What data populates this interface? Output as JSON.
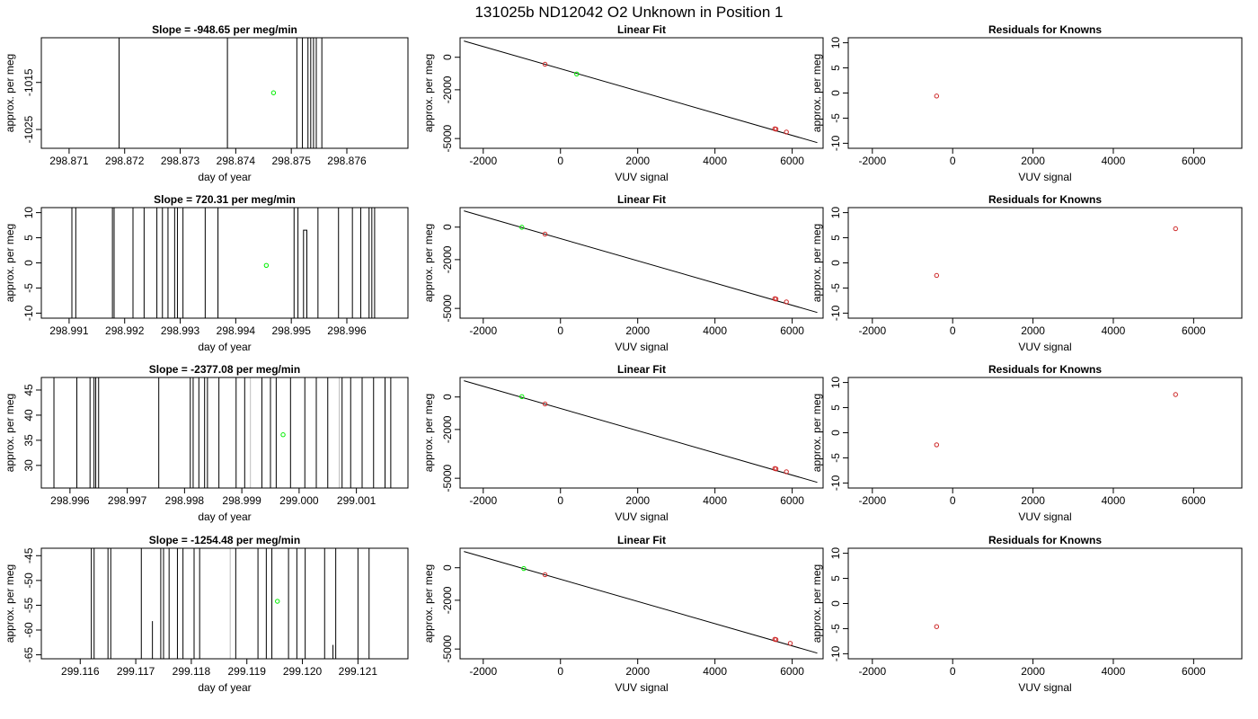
{
  "page": {
    "title": "131025b     ND12042   O2 Unknown in Position  1"
  },
  "chart_data": [
    {
      "type": "line",
      "row": 0,
      "col": 0,
      "title": "Slope =  -948.65  per meg/min",
      "xlabel": "day of year",
      "ylabel": "approx. per meg",
      "xlim": [
        298.8705,
        298.8771
      ],
      "ylim": [
        -1029,
        -1005.5
      ],
      "xticks": [
        298.871,
        298.872,
        298.873,
        298.874,
        298.875,
        298.876
      ],
      "xtick_labels": [
        "298.871",
        "298.872",
        "298.873",
        "298.874",
        "298.875",
        "298.876"
      ],
      "yticks": [
        -1015,
        -1025
      ],
      "ytick_labels": [
        "-1015",
        "-1025"
      ],
      "trace_x": [
        298.8719,
        298.8719,
        298.87385,
        298.87385,
        298.8751,
        298.8751,
        298.8752,
        298.8752,
        298.8753,
        298.8753,
        298.87535,
        298.87535,
        298.8754,
        298.8754,
        298.87545,
        298.87545,
        298.87555,
        298.87555
      ],
      "trace_y": [
        -1035,
        -995,
        -995,
        -1035,
        -1035,
        -995,
        -995,
        -1035,
        -1035,
        -995,
        -995,
        -1035,
        -1035,
        -995,
        -995,
        -1035,
        -1035,
        -995
      ],
      "grey_lines": [
        298.87385
      ],
      "mean_point": [
        298.87468,
        -1017.2
      ]
    },
    {
      "type": "scatter",
      "row": 0,
      "col": 1,
      "title": "Linear Fit",
      "xlabel": "VUV signal",
      "ylabel": "approx. per meg",
      "xlim": [
        -2600,
        6800
      ],
      "ylim": [
        -5600,
        1200
      ],
      "xticks": [
        -2000,
        0,
        2000,
        4000,
        6000
      ],
      "xtick_labels": [
        "-2000",
        "0",
        "2000",
        "4000",
        "6000"
      ],
      "yticks": [
        0,
        -2000,
        -5000
      ],
      "ytick_labels": [
        "0",
        "-2000",
        "-5000"
      ],
      "fit_line": [
        [
          -2500,
          1000
        ],
        [
          6650,
          -5250
        ]
      ],
      "known_points": [
        [
          -400,
          -430
        ],
        [
          5550,
          -4400
        ],
        [
          5580,
          -4420
        ],
        [
          5850,
          -4600
        ]
      ],
      "unknown_points": [
        [
          420,
          -1030
        ]
      ]
    },
    {
      "type": "scatter",
      "row": 0,
      "col": 2,
      "title": "Residuals for Knowns",
      "xlabel": "VUV signal",
      "ylabel": "approx. per meg",
      "xlim": [
        -2600,
        7200
      ],
      "ylim": [
        -11,
        11
      ],
      "xticks": [
        -2000,
        0,
        2000,
        4000,
        6000
      ],
      "xtick_labels": [
        "-2000",
        "0",
        "2000",
        "4000",
        "6000"
      ],
      "yticks": [
        10,
        5,
        0,
        -5,
        -10
      ],
      "ytick_labels": [
        "10",
        "5",
        "0",
        "-5",
        "-10"
      ],
      "points": [
        [
          -400,
          -0.6
        ]
      ]
    },
    {
      "type": "line",
      "row": 1,
      "col": 0,
      "title": "Slope =  720.31  per meg/min",
      "xlabel": "day of year",
      "ylabel": "approx. per meg",
      "xlim": [
        298.9905,
        298.9971
      ],
      "ylim": [
        -11,
        11
      ],
      "xticks": [
        298.991,
        298.992,
        298.993,
        298.994,
        298.995,
        298.996
      ],
      "xtick_labels": [
        "298.991",
        "298.992",
        "298.993",
        "298.994",
        "298.995",
        "298.996"
      ],
      "yticks": [
        10,
        5,
        0,
        -5,
        -10
      ],
      "ytick_labels": [
        "10",
        "5",
        "0",
        "-5",
        "-10"
      ],
      "trace_x": [
        298.99105,
        298.99105,
        298.99112,
        298.99112,
        298.99178,
        298.99178,
        298.99181,
        298.99181,
        298.99215,
        298.99215,
        298.99235,
        298.99235,
        298.99258,
        298.99258,
        298.99268,
        298.99268,
        298.99278,
        298.99278,
        298.9929,
        298.9929,
        298.99295,
        298.99295,
        298.99305,
        298.99305,
        298.99345,
        298.99345,
        298.99368,
        298.99368,
        298.99505,
        298.99505,
        298.99512,
        298.99512,
        298.99522,
        298.99522,
        298.99528,
        298.99528,
        298.99548,
        298.99548,
        298.99585,
        298.99585,
        298.9961,
        298.9961,
        298.99625,
        298.99625,
        298.9964,
        298.9964,
        298.99645,
        298.99645,
        298.9965,
        298.9965
      ],
      "trace_y": [
        -15,
        15,
        15,
        -15,
        -15,
        15,
        15,
        -15,
        -15,
        15,
        15,
        -15,
        -15,
        15,
        15,
        -15,
        -15,
        15,
        15,
        -15,
        -15,
        15,
        15,
        -15,
        -15,
        15,
        15,
        -15,
        -15,
        15,
        15,
        -15,
        -15,
        6.5,
        6.5,
        -15,
        -15,
        15,
        15,
        -15,
        -15,
        15,
        15,
        -15,
        -15,
        15,
        15,
        -15,
        -15,
        15
      ],
      "grey_lines": [
        298.99368
      ],
      "mean_point": [
        298.99455,
        -0.5
      ]
    },
    {
      "type": "scatter",
      "row": 1,
      "col": 1,
      "title": "Linear Fit",
      "xlabel": "VUV signal",
      "ylabel": "approx. per meg",
      "xlim": [
        -2600,
        6800
      ],
      "ylim": [
        -5600,
        1200
      ],
      "xticks": [
        -2000,
        0,
        2000,
        4000,
        6000
      ],
      "xtick_labels": [
        "-2000",
        "0",
        "2000",
        "4000",
        "6000"
      ],
      "yticks": [
        0,
        -2000,
        -5000
      ],
      "ytick_labels": [
        "0",
        "-2000",
        "-5000"
      ],
      "fit_line": [
        [
          -2500,
          1000
        ],
        [
          6650,
          -5250
        ]
      ],
      "known_points": [
        [
          -400,
          -430
        ],
        [
          5550,
          -4400
        ],
        [
          5580,
          -4420
        ],
        [
          5850,
          -4600
        ]
      ],
      "unknown_points": [
        [
          -1000,
          -10
        ]
      ]
    },
    {
      "type": "scatter",
      "row": 1,
      "col": 2,
      "title": "Residuals for Knowns",
      "xlabel": "VUV signal",
      "ylabel": "approx. per meg",
      "xlim": [
        -2600,
        7200
      ],
      "ylim": [
        -11,
        11
      ],
      "xticks": [
        -2000,
        0,
        2000,
        4000,
        6000
      ],
      "xtick_labels": [
        "-2000",
        "0",
        "2000",
        "4000",
        "6000"
      ],
      "yticks": [
        10,
        5,
        0,
        -5,
        -10
      ],
      "ytick_labels": [
        "10",
        "5",
        "0",
        "-5",
        "-10"
      ],
      "points": [
        [
          -400,
          -2.5
        ],
        [
          5550,
          6.8
        ]
      ]
    },
    {
      "type": "line",
      "row": 2,
      "col": 0,
      "title": "Slope =  -2377.08  per meg/min",
      "xlabel": "day of year",
      "ylabel": "approx. per meg",
      "xlim": [
        298.9955,
        299.0019
      ],
      "ylim": [
        25.5,
        47.5
      ],
      "xticks": [
        298.996,
        298.997,
        298.998,
        298.999,
        299.0,
        299.001
      ],
      "xtick_labels": [
        "298.996",
        "298.997",
        "298.998",
        "298.999",
        "299.000",
        "299.001"
      ],
      "yticks": [
        45,
        40,
        35,
        30
      ],
      "ytick_labels": [
        "45",
        "40",
        "35",
        "30"
      ],
      "trace_x": [
        298.99572,
        298.99572,
        298.99612,
        298.99612,
        298.99635,
        298.99635,
        298.99642,
        298.99642,
        298.99645,
        298.99645,
        298.9965,
        298.9965,
        298.99755,
        298.99755,
        298.9981,
        298.9981,
        298.99815,
        298.99815,
        298.99825,
        298.99825,
        298.99835,
        298.99835,
        298.9984,
        298.9984,
        298.9986,
        298.9986,
        298.9989,
        298.9989,
        298.99905,
        298.99905,
        298.99935,
        298.99935,
        298.9995,
        298.9995,
        298.9996,
        298.9996,
        298.99985,
        298.99985,
        299.0001,
        299.0001,
        299.0003,
        299.0003,
        299.0005,
        299.0005,
        299.00075,
        299.00075,
        299.0009,
        299.0009,
        299.0011,
        299.0011,
        299.0013,
        299.0013,
        299.0015,
        299.0015,
        299.0016,
        299.0016
      ],
      "trace_y": [
        20,
        50,
        50,
        20,
        20,
        50,
        50,
        20,
        20,
        50,
        50,
        20,
        20,
        50,
        50,
        20,
        20,
        50,
        50,
        20,
        20,
        50,
        50,
        20,
        20,
        50,
        50,
        20,
        20,
        50,
        50,
        20,
        20,
        50,
        50,
        20,
        20,
        50,
        50,
        20,
        20,
        50,
        50,
        20,
        20,
        50,
        50,
        20,
        20,
        50,
        50,
        20,
        20,
        50,
        50,
        20
      ],
      "grey_lines": [
        298.99915,
        299.0007
      ],
      "mean_point": [
        298.99972,
        36.1
      ]
    },
    {
      "type": "scatter",
      "row": 2,
      "col": 1,
      "title": "Linear Fit",
      "xlabel": "VUV signal",
      "ylabel": "approx. per meg",
      "xlim": [
        -2600,
        6800
      ],
      "ylim": [
        -5600,
        1200
      ],
      "xticks": [
        -2000,
        0,
        2000,
        4000,
        6000
      ],
      "xtick_labels": [
        "-2000",
        "0",
        "2000",
        "4000",
        "6000"
      ],
      "yticks": [
        0,
        -2000,
        -5000
      ],
      "ytick_labels": [
        "0",
        "-2000",
        "-5000"
      ],
      "fit_line": [
        [
          -2500,
          1000
        ],
        [
          6650,
          -5250
        ]
      ],
      "known_points": [
        [
          -400,
          -430
        ],
        [
          5550,
          -4400
        ],
        [
          5580,
          -4420
        ],
        [
          5850,
          -4600
        ]
      ],
      "unknown_points": [
        [
          -1000,
          20
        ]
      ]
    },
    {
      "type": "scatter",
      "row": 2,
      "col": 2,
      "title": "Residuals for Knowns",
      "xlabel": "VUV signal",
      "ylabel": "approx. per meg",
      "xlim": [
        -2600,
        7200
      ],
      "ylim": [
        -11,
        11
      ],
      "xticks": [
        -2000,
        0,
        2000,
        4000,
        6000
      ],
      "xtick_labels": [
        "-2000",
        "0",
        "2000",
        "4000",
        "6000"
      ],
      "yticks": [
        10,
        5,
        0,
        -5,
        -10
      ],
      "ytick_labels": [
        "10",
        "5",
        "0",
        "-5",
        "-10"
      ],
      "points": [
        [
          -400,
          -2.4
        ],
        [
          5550,
          7.6
        ]
      ]
    },
    {
      "type": "line",
      "row": 3,
      "col": 0,
      "title": "Slope =  -1254.48  per meg/min",
      "xlabel": "day of year",
      "ylabel": "approx. per meg",
      "xlim": [
        299.1153,
        299.1219
      ],
      "ylim": [
        -65.8,
        -43.5
      ],
      "xticks": [
        299.116,
        299.117,
        299.118,
        299.119,
        299.12,
        299.121
      ],
      "xtick_labels": [
        "299.116",
        "299.117",
        "299.118",
        "299.119",
        "299.120",
        "299.121"
      ],
      "yticks": [
        -45,
        -50,
        -55,
        -60,
        -65
      ],
      "ytick_labels": [
        "-45",
        "-50",
        "-55",
        "-60",
        "-65"
      ],
      "trace_x": [
        299.1162,
        299.1162,
        299.11625,
        299.11625,
        299.1165,
        299.1165,
        299.11655,
        299.11655,
        299.1171,
        299.1171,
        299.11745,
        299.11745,
        299.1175,
        299.1175,
        299.1176,
        299.1176,
        299.11775,
        299.11775,
        299.11785,
        299.11785,
        299.11805,
        299.11805,
        299.11815,
        299.11815,
        299.1188,
        299.1188,
        299.1192,
        299.1192,
        299.11935,
        299.11935,
        299.11945,
        299.11945,
        299.11975,
        299.11975,
        299.1199,
        299.1199,
        299.12005,
        299.12005,
        299.1204,
        299.1204,
        299.1206,
        299.1206,
        299.121,
        299.121,
        299.1212,
        299.1212
      ],
      "trace_y": [
        -70,
        -40,
        -40,
        -70,
        -70,
        -40,
        -40,
        -70,
        -70,
        -40,
        -40,
        -70,
        -70,
        -40,
        -40,
        -70,
        -70,
        -40,
        -40,
        -70,
        -70,
        -40,
        -40,
        -70,
        -70,
        -40,
        -40,
        -70,
        -70,
        -40,
        -40,
        -70,
        -70,
        -40,
        -40,
        -70,
        -70,
        -40,
        -40,
        -70,
        -70,
        -40,
        -40,
        -70,
        -70,
        -40
      ],
      "short_marks": [
        [
          299.1173,
          -58.2
        ],
        [
          299.12055,
          -63
        ]
      ],
      "grey_lines": [
        299.1187
      ],
      "mean_point": [
        299.11955,
        -54.2
      ]
    },
    {
      "type": "scatter",
      "row": 3,
      "col": 1,
      "title": "Linear Fit",
      "xlabel": "VUV signal",
      "ylabel": "approx. per meg",
      "xlim": [
        -2600,
        6800
      ],
      "ylim": [
        -5600,
        1200
      ],
      "xticks": [
        -2000,
        0,
        2000,
        4000,
        6000
      ],
      "xtick_labels": [
        "-2000",
        "0",
        "2000",
        "4000",
        "6000"
      ],
      "yticks": [
        0,
        -2000,
        -5000
      ],
      "ytick_labels": [
        "0",
        "-2000",
        "-5000"
      ],
      "fit_line": [
        [
          -2500,
          1000
        ],
        [
          6650,
          -5250
        ]
      ],
      "known_points": [
        [
          -400,
          -430
        ],
        [
          5550,
          -4400
        ],
        [
          5580,
          -4420
        ],
        [
          5950,
          -4650
        ]
      ],
      "unknown_points": [
        [
          -950,
          -50
        ]
      ]
    },
    {
      "type": "scatter",
      "row": 3,
      "col": 2,
      "title": "Residuals for Knowns",
      "xlabel": "VUV signal",
      "ylabel": "approx. per meg",
      "xlim": [
        -2600,
        7200
      ],
      "ylim": [
        -11,
        11
      ],
      "xticks": [
        -2000,
        0,
        2000,
        4000,
        6000
      ],
      "xtick_labels": [
        "-2000",
        "0",
        "2000",
        "4000",
        "6000"
      ],
      "yticks": [
        10,
        5,
        0,
        -5,
        -10
      ],
      "ytick_labels": [
        "10",
        "5",
        "0",
        "-5",
        "-10"
      ],
      "points": [
        [
          -400,
          -4.6
        ]
      ]
    }
  ],
  "colors": {
    "known": "#cd2626",
    "unknown": "#00ee00",
    "trace": "#000000",
    "grey": "#bebebe"
  }
}
